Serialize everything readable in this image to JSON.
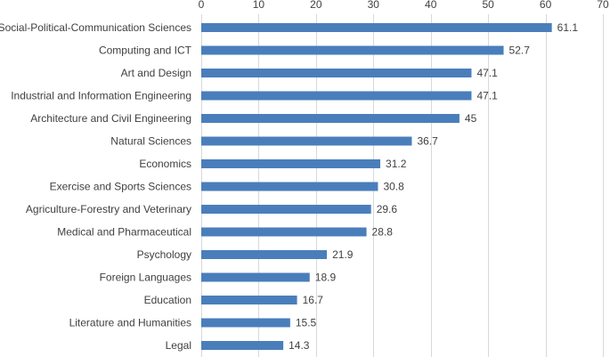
{
  "chart_data": {
    "type": "bar",
    "orientation": "horizontal",
    "title": "",
    "xlabel": "",
    "ylabel": "",
    "xlim": [
      0,
      70
    ],
    "x_ticks": [
      0,
      10,
      20,
      30,
      40,
      50,
      60,
      70
    ],
    "x_axis_position": "top",
    "grid": true,
    "legend": "none",
    "bar_color": "#4a7ebb",
    "categories": [
      "Social-Political-Communication Sciences",
      "Computing and ICT",
      "Art and Design",
      "Industrial and Information Engineering",
      "Architecture and Civil Engineering",
      "Natural Sciences",
      "Economics",
      "Exercise and Sports Sciences",
      "Agriculture-Forestry and Veterinary",
      "Medical and Pharmaceutical",
      "Psychology",
      "Foreign Languages",
      "Education",
      "Literature and Humanities",
      "Legal"
    ],
    "values": [
      61.1,
      52.7,
      47.1,
      47.1,
      45,
      36.7,
      31.2,
      30.8,
      29.6,
      28.8,
      21.9,
      18.9,
      16.7,
      15.5,
      14.3
    ]
  }
}
